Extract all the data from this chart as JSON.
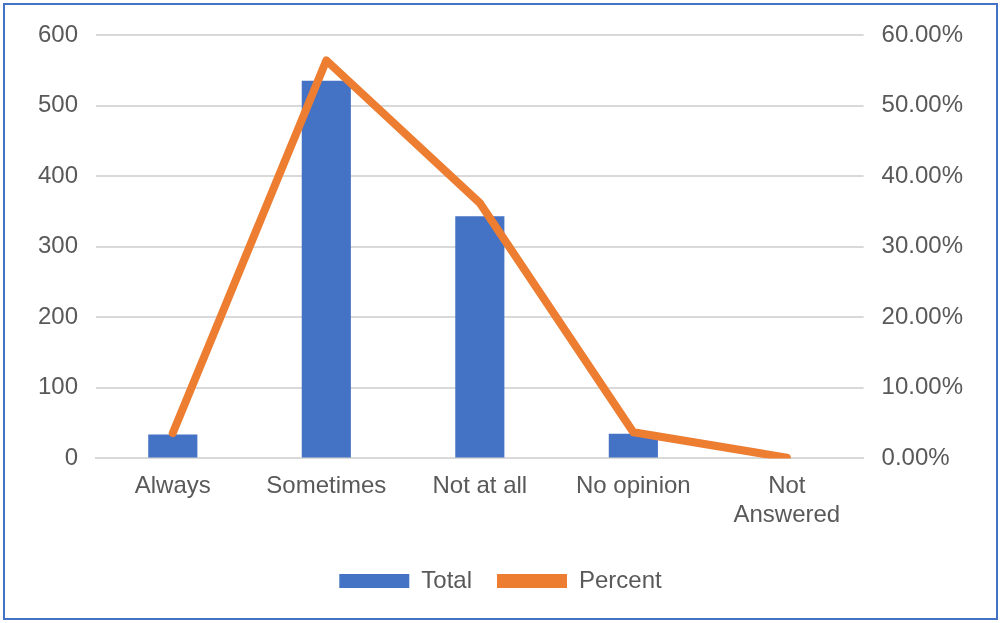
{
  "chart_data": {
    "type": "bar",
    "categories": [
      "Always",
      "Sometimes",
      "Not at all",
      "No opinion",
      "Not Answered"
    ],
    "series": [
      {
        "name": "Total",
        "color": "#4472c4",
        "values": [
          34,
          535,
          343,
          35,
          null
        ]
      },
      {
        "name": "Percent",
        "type": "line",
        "axis": "y2",
        "color": "#ed7d31",
        "values": [
          3.6,
          56.4,
          36.2,
          3.7,
          0.1
        ]
      }
    ],
    "ylim": [
      0,
      600
    ],
    "yticks": [
      0,
      100,
      200,
      300,
      400,
      500,
      600
    ],
    "y2lim": [
      0,
      60
    ],
    "y2ticks": [
      {
        "value": 0,
        "label": "0.00%"
      },
      {
        "value": 10,
        "label": "10.00%"
      },
      {
        "value": 20,
        "label": "20.00%"
      },
      {
        "value": 30,
        "label": "30.00%"
      },
      {
        "value": 40,
        "label": "40.00%"
      },
      {
        "value": 50,
        "label": "50.00%"
      },
      {
        "value": 60,
        "label": "60.00%"
      }
    ],
    "grid": "y",
    "legend": "bottom",
    "marker": "none",
    "line_style": "solid"
  }
}
